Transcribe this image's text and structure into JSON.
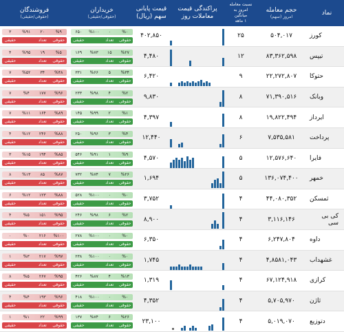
{
  "header": {
    "name": "نماد",
    "volume": "حجم معامله",
    "volume_sub": "امروز (سهم)",
    "ratio": "نسبت معامله",
    "ratio_sub": "امروز به میانگین",
    "ratio_sub2": "۱ ماهه",
    "spread": "پراکندگی قیمت",
    "spread_sub": "معاملات روز",
    "price": "قیمت پایانی",
    "price_sub": "سهم (ریال)",
    "buyers": "خریداران",
    "buyers_sub": "(حقوقی/حقیقی)",
    "sellers": "فروشندگان",
    "sellers_sub": "(حقوقی/حقیقی)"
  },
  "colors": {
    "header": "#1c4a8e",
    "buy": "#3d9b46",
    "sell": "#d94448",
    "spark": "#22649b"
  },
  "rows": [
    {
      "name": "کورز",
      "volume": "۵۰۴,۰۱۷",
      "ratio": "۲۵",
      "price": "۴۰۲,۸۵۰",
      "buy_top": [
        "%۰",
        "۰",
        "%۱۰۰",
        "۶۵۰"
      ],
      "buy_bot": [
        "حقوقی",
        "تعداد",
        "",
        "حقیقی"
      ],
      "sell_top": [
        "%۹",
        "۲۰",
        "%۹۱",
        "۳"
      ],
      "sell_bot": [
        "حقوقی",
        "تعداد",
        "",
        "حقیقی"
      ],
      "spark": [
        0.3,
        0,
        0,
        0,
        0,
        0,
        0,
        0,
        0,
        0,
        0,
        0,
        0,
        0,
        0,
        0,
        0,
        0,
        0,
        1
      ]
    },
    {
      "name": "تیپس",
      "volume": "۸۳,۳۶۲,۵۹۸",
      "ratio": "۱۲",
      "price": "۴,۴۸۰",
      "buy_top": [
        "%۲۷",
        "۱۵",
        "%۷۳",
        "۱۶۹"
      ],
      "buy_bot": [
        "حقوقی",
        "تعداد",
        "",
        "حقیقی"
      ],
      "sell_top": [
        "%۵",
        "۱۹",
        "%۹۵",
        "۴"
      ],
      "sell_bot": [
        "حقوقی",
        "تعداد",
        "",
        "حقیقی"
      ],
      "spark": [
        1,
        0,
        0,
        0,
        0,
        0,
        0,
        0.3,
        0,
        0,
        0,
        0,
        0,
        0,
        0,
        0,
        0,
        0,
        0,
        0.5
      ]
    },
    {
      "name": "حتوکا",
      "volume": "۲۲,۲۷۲,۸۰۷",
      "ratio": "۹",
      "price": "۶,۴۲۰",
      "buy_top": [
        "%۳۴",
        "۵",
        "%۶۶",
        "۳۳۱"
      ],
      "buy_bot": [
        "حقوقی",
        "تعداد",
        "",
        "حقیقی"
      ],
      "sell_top": [
        "%۴۸",
        "۳۴",
        "%۵۲",
        "۷"
      ],
      "sell_bot": [
        "حقوقی",
        "تعداد",
        "",
        "حقیقی"
      ],
      "spark": [
        0.2,
        0,
        0,
        0.2,
        0.3,
        0.2,
        0.3,
        0.2,
        0.3,
        0.2,
        0.3,
        0.4,
        0.2,
        0.3,
        0.2,
        0,
        0,
        0,
        0,
        0
      ]
    },
    {
      "name": "وبانک",
      "volume": "۷۱,۳۹۰,۵۱۶",
      "ratio": "۸",
      "price": "۹,۸۳۰",
      "buy_top": [
        "%۲",
        "۴",
        "%۹۸",
        "۲۳۳"
      ],
      "buy_bot": [
        "حقوقی",
        "تعداد",
        "",
        "حقیقی"
      ],
      "sell_top": [
        "%۹۶",
        "۱۷۷",
        "%۴",
        "۷"
      ],
      "sell_bot": [
        "حقوقی",
        "تعداد",
        "",
        "حقیقی"
      ],
      "spark": [
        0,
        0,
        0,
        0,
        0,
        0,
        0,
        0,
        0,
        0,
        0,
        0,
        0,
        0,
        0,
        0,
        0,
        0,
        0.3,
        1
      ]
    },
    {
      "name": "ایرداز",
      "volume": "۱۹,۸۲۲,۴۹۴",
      "ratio": "۸",
      "price": "۴,۳۹۷",
      "buy_top": [
        "%۱",
        "۲",
        "%۹۹",
        "۱۴۵"
      ],
      "buy_bot": [
        "حقوقی",
        "تعداد",
        "",
        "حقیقی"
      ],
      "sell_top": [
        "%۸۹",
        "۱۶۴",
        "%۱۱",
        "۷"
      ],
      "sell_bot": [
        "حقوقی",
        "تعداد",
        "",
        "حقیقی"
      ],
      "spark": [
        0.3,
        0,
        0,
        0,
        0,
        0,
        0,
        0,
        0,
        0,
        0,
        0,
        0,
        0,
        0,
        0,
        0,
        0,
        0,
        0.8
      ]
    },
    {
      "name": "پرداخت",
      "volume": "۷,۵۳۵,۵۸۱",
      "ratio": "۶",
      "price": "۱۲,۴۴۰",
      "buy_top": [
        "%۴",
        "۳",
        "%۹۶",
        "۲۵۰"
      ],
      "buy_bot": [
        "حقوقی",
        "تعداد",
        "",
        "حقیقی"
      ],
      "sell_top": [
        "%۸۸",
        "۲۴۶",
        "%۱۲",
        "۴"
      ],
      "sell_bot": [
        "حقوقی",
        "تعداد",
        "",
        "حقیقی"
      ],
      "spark": [
        0.5,
        0,
        0,
        0.2,
        0.3,
        0,
        0,
        0,
        0,
        0,
        0,
        0,
        0,
        0,
        0,
        0,
        0,
        0,
        0.2,
        0.8
      ]
    },
    {
      "name": "فایرا",
      "volume": "۱۲,۵۷۶,۶۴۰",
      "ratio": "۵",
      "price": "۴,۵۷۰",
      "buy_top": [
        "%۹",
        "۱",
        "%۹۱",
        "۵۴۶"
      ],
      "buy_bot": [
        "حقوقی",
        "تعداد",
        "",
        "حقیقی"
      ],
      "sell_top": [
        "%۸۵",
        "۱۹۴",
        "%۱۵",
        "۳"
      ],
      "sell_bot": [
        "حقوقی",
        "تعداد",
        "",
        "حقیقی"
      ],
      "spark": [
        0.3,
        0.5,
        0.6,
        0.5,
        0.6,
        0.4,
        0.7,
        0.5,
        0.6,
        0,
        0,
        0,
        0,
        0,
        0,
        0,
        0,
        0,
        0,
        0.7
      ]
    },
    {
      "name": "خمهر",
      "volume": "۱۳۶,۰۷۴,۴۰۰",
      "ratio": "۵",
      "price": "۱,۶۹۴",
      "buy_top": [
        "%۲۶",
        "۷",
        "%۷۴",
        "۷۳۲"
      ],
      "buy_bot": [
        "حقوقی",
        "تعداد",
        "",
        "حقیقی"
      ],
      "sell_top": [
        "%۸۷",
        "۸۵",
        "%۱۳",
        "۸"
      ],
      "sell_bot": [
        "حقوقی",
        "تعداد",
        "",
        "حقیقی"
      ],
      "spark": [
        0,
        0,
        0,
        0,
        0,
        0,
        0,
        0,
        0,
        0,
        0,
        0,
        0,
        0,
        0,
        0.3,
        0.5,
        0.6,
        0.3,
        1
      ]
    },
    {
      "name": "ثمسکن",
      "volume": "۴۴,۰۸۰,۳۵۲",
      "ratio": "۴",
      "price": "۳,۷۵۲",
      "buy_top": [
        "%۰",
        "۰",
        "%۱۰۰",
        "۵۲۸"
      ],
      "buy_bot": [
        "حقوقی",
        "تعداد",
        "",
        "حقیقی"
      ],
      "sell_top": [
        "%۸۸",
        "۱۲۳",
        "%۱۲",
        "۶"
      ],
      "sell_bot": [
        "حقوقی",
        "تعداد",
        "",
        "حقیقی"
      ],
      "spark": [
        0.2,
        0,
        0,
        0,
        0,
        0,
        0,
        0,
        0,
        0,
        0,
        0,
        0,
        0,
        0,
        0,
        0,
        0,
        0,
        0.9
      ]
    },
    {
      "name": "کی بی سی",
      "volume": "۳,۱۱۶,۱۴۶",
      "ratio": "۴",
      "price": "۸,۹۰۰",
      "buy_top": [
        "%۲",
        "۶",
        "%۹۸",
        "۲۴۶"
      ],
      "buy_bot": [
        "حقوقی",
        "تعداد",
        "",
        "حقیقی"
      ],
      "sell_top": [
        "%۹۵",
        "۱۵۱",
        "%۵",
        "۴"
      ],
      "sell_bot": [
        "حقوقی",
        "تعداد",
        "",
        "حقیقی"
      ],
      "spark": [
        0,
        0,
        0,
        0,
        0,
        0,
        0,
        0,
        0,
        0,
        0,
        0,
        0,
        0,
        0,
        0.3,
        0.5,
        0.3,
        0,
        1
      ]
    },
    {
      "name": "داوه",
      "volume": "۶,۲۴۷,۸۰۴",
      "ratio": "۴",
      "price": "۶,۳۵۰",
      "buy_top": [
        "%۰",
        "۰",
        "%۱۰۰",
        "۲۷۸"
      ],
      "buy_bot": [
        "حقوقی",
        "تعداد",
        "",
        "حقیقی"
      ],
      "sell_top": [
        "%۱۰۰",
        "۲۱۶",
        "%۰",
        "۰"
      ],
      "sell_bot": [
        "حقوقی",
        "تعداد",
        "",
        "حقیقی"
      ],
      "spark": [
        0,
        0,
        0,
        0,
        0,
        0,
        0,
        0,
        0,
        0,
        0,
        0,
        0,
        0,
        0,
        0,
        0,
        0,
        0.2,
        0.6
      ]
    },
    {
      "name": "غشهداب",
      "volume": "۴,۸۵۸۱,۰۴۳",
      "ratio": "۴",
      "price": "۱,۷۴۵",
      "buy_top": [
        "%۰",
        "۰",
        "%۱۰۰",
        "۲۳۸"
      ],
      "buy_bot": [
        "حقوقی",
        "تعداد",
        "",
        "حقیقی"
      ],
      "sell_top": [
        "%۹۷",
        "۲۱۷",
        "%۳",
        "۱"
      ],
      "sell_bot": [
        "حقوقی",
        "تعداد",
        "",
        "حقیقی"
      ],
      "spark": [
        0.2,
        0.2,
        0.2,
        0.3,
        0.2,
        0.2,
        0.2,
        0.3,
        0.2,
        0.2,
        0.2,
        0.2,
        0,
        0,
        0,
        0,
        0,
        0,
        0,
        0.4
      ]
    },
    {
      "name": "کرازی",
      "volume": "۶۷,۱۲۴,۹۱۸",
      "ratio": "۴",
      "price": "۱,۳۱۹",
      "buy_top": [
        "%۱۳",
        "۴",
        "%۸۷",
        "۴۲۶"
      ],
      "buy_bot": [
        "حقوقی",
        "تعداد",
        "",
        "حقیقی"
      ],
      "sell_top": [
        "%۹۵",
        "۲۶۷",
        "%۵",
        "۸"
      ],
      "sell_bot": [
        "حقوقی",
        "تعداد",
        "",
        "حقیقی"
      ],
      "spark": [
        0.6,
        0,
        0,
        0,
        0,
        0,
        0,
        0,
        0,
        0,
        0,
        0,
        0,
        0,
        0,
        0,
        0,
        0,
        0,
        0.3
      ]
    },
    {
      "name": "ثاژن",
      "volume": "۵,۷۰۵,۹۷۰",
      "ratio": "۴",
      "price": "۴,۳۵۲",
      "buy_top": [
        "%۰",
        "۰",
        "%۱۰۰",
        "۴۱۸"
      ],
      "buy_bot": [
        "حقوقی",
        "تعداد",
        "",
        "حقیقی"
      ],
      "sell_top": [
        "%۹۶",
        "۱۹۳",
        "%۴",
        "۴"
      ],
      "sell_bot": [
        "حقوقی",
        "تعداد",
        "",
        "حقیقی"
      ],
      "spark": [
        0,
        0,
        0,
        0,
        0,
        0,
        0,
        0,
        0,
        0,
        0,
        0,
        0,
        0,
        0,
        0,
        0,
        0,
        0.2,
        0.7
      ]
    },
    {
      "name": "دتوزیع",
      "volume": "۵,۰۱۹,۰۷۰",
      "ratio": "۴",
      "price": "۲۳,۱۰۰",
      "buy_top": [
        "%۲۶",
        "۶",
        "%۷۴",
        "۱۳۷"
      ],
      "buy_bot": [
        "حقوقی",
        "تعداد",
        "",
        "حقیقی"
      ],
      "sell_top": [
        "%۹۹",
        "۲۲",
        "%۱",
        "۱"
      ],
      "sell_bot": [
        "حقوقی",
        "تعداد",
        "",
        "حقیقی"
      ],
      "spark": [
        0,
        0,
        0,
        0,
        0.2,
        0.3,
        0,
        0.2,
        0.3,
        0.2,
        0,
        0,
        0,
        0,
        0.3,
        0.4,
        0,
        0,
        0,
        0.8
      ]
    }
  ]
}
